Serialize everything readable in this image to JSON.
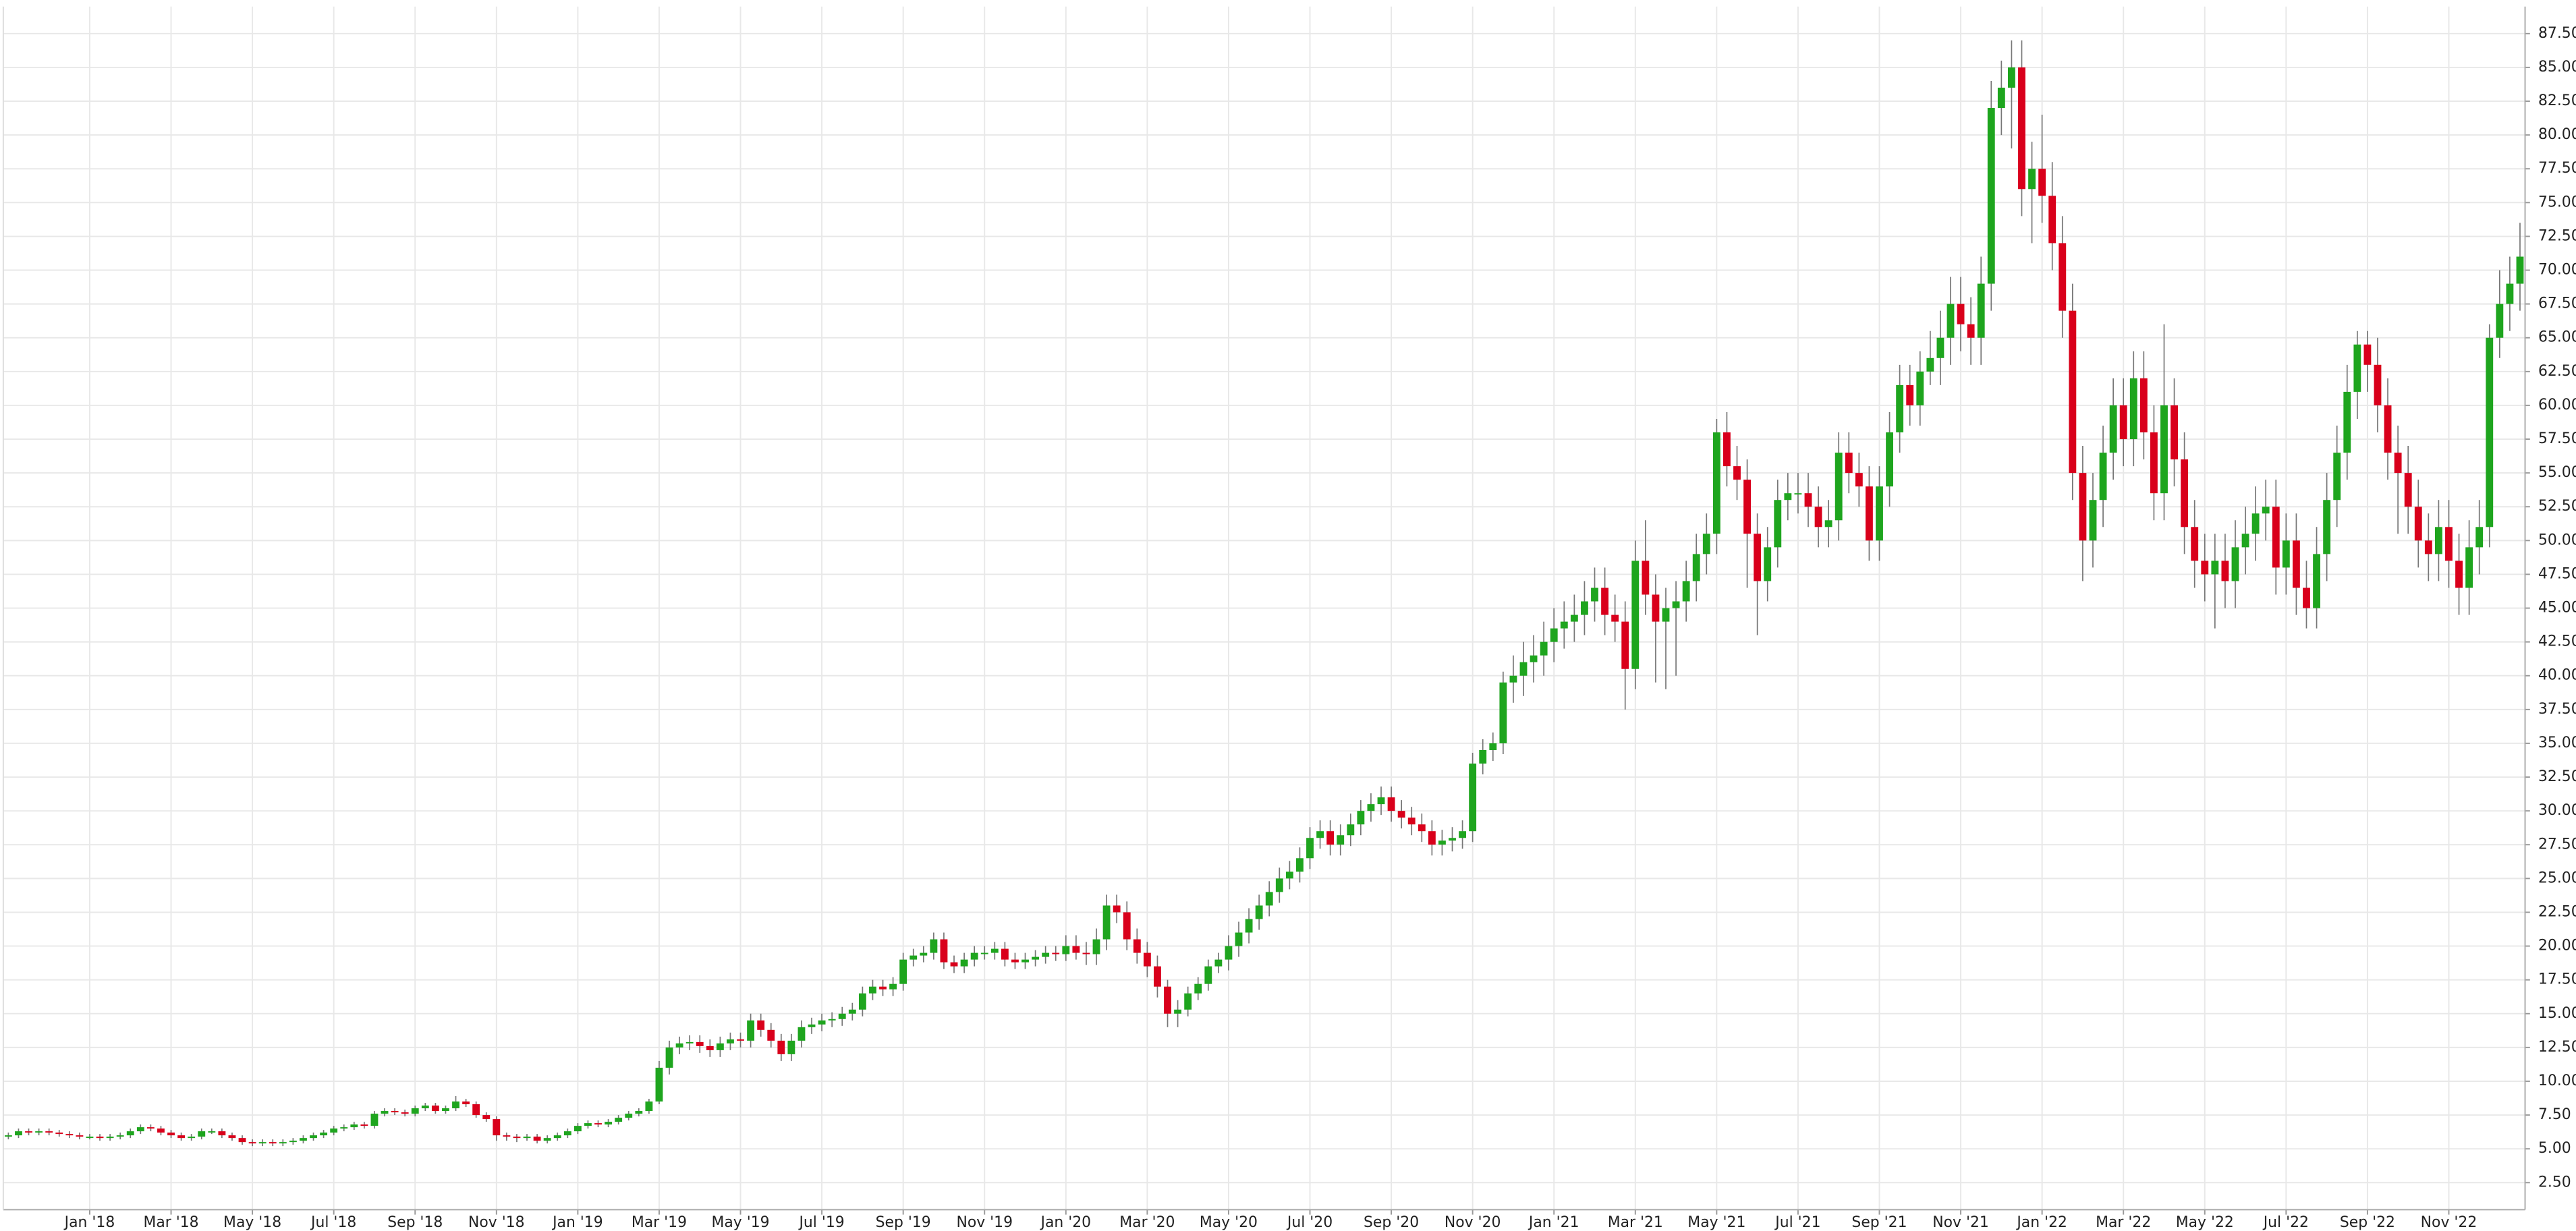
{
  "chart_data": {
    "type": "candlestick",
    "up_color": "#1ea51e",
    "down_color": "#d9001b",
    "wick_color": "#777777",
    "grid": true,
    "y_axis_side": "right",
    "open": [
      5.9,
      6.0,
      6.3,
      6.2,
      6.3,
      6.2,
      6.1,
      6.0,
      5.9,
      5.9,
      5.8,
      5.9,
      6.0,
      6.3,
      6.6,
      6.5,
      6.2,
      6.0,
      5.8,
      5.9,
      6.3,
      6.3,
      6.0,
      5.8,
      5.5,
      5.4,
      5.5,
      5.4,
      5.5,
      5.6,
      5.8,
      6.0,
      6.2,
      6.5,
      6.6,
      6.8,
      6.7,
      7.6,
      7.8,
      7.7,
      7.6,
      8.0,
      8.2,
      7.8,
      8.0,
      8.5,
      8.3,
      7.5,
      7.2,
      6.0,
      5.9,
      5.8,
      5.9,
      5.6,
      5.8,
      6.0,
      6.3,
      6.7,
      6.9,
      6.8,
      7.0,
      7.3,
      7.6,
      7.8,
      8.5,
      11.0,
      12.5,
      12.8,
      12.9,
      12.6,
      12.3,
      12.8,
      13.1,
      13.0,
      14.5,
      13.8,
      13.0,
      12.0,
      13.0,
      14.0,
      14.2,
      14.5,
      14.6,
      15.0,
      15.3,
      16.5,
      17.0,
      16.8,
      17.2,
      19.0,
      19.3,
      19.5,
      20.5,
      18.8,
      18.5,
      19.0,
      19.5,
      19.5,
      19.8,
      19.0,
      18.8,
      19.0,
      19.2,
      19.5,
      19.4,
      20.0,
      19.5,
      19.4,
      20.5,
      23.0,
      22.5,
      20.5,
      19.5,
      18.5,
      17.0,
      15.0,
      15.3,
      16.5,
      17.2,
      18.5,
      19.0,
      20.0,
      21.0,
      22.0,
      23.0,
      24.0,
      25.0,
      25.5,
      26.5,
      28.0,
      28.5,
      27.5,
      28.2,
      29.0,
      30.0,
      30.5,
      31.0,
      30.0,
      29.5,
      29.0,
      28.5,
      27.5,
      27.8,
      28.0,
      28.5,
      33.5,
      34.5,
      35.0,
      39.5,
      40.0,
      41.0,
      41.5,
      42.5,
      43.5,
      44.0,
      44.5,
      45.5,
      46.5,
      44.5,
      44.0,
      40.5,
      48.5,
      46.0,
      44.0,
      45.0,
      45.5,
      47.0,
      49.0,
      50.5,
      58.0,
      55.5,
      54.5,
      50.5,
      47.0,
      49.5,
      53.0,
      53.5,
      53.5,
      52.5,
      51.0,
      51.5,
      56.5,
      55.0,
      54.0,
      50.0,
      54.0,
      58.0,
      61.5,
      60.0,
      62.5,
      63.5,
      65.0,
      67.5,
      66.0,
      65.0,
      69.0,
      82.0,
      83.5,
      85.0,
      76.0,
      77.5,
      75.5,
      72.0,
      67.0,
      55.0,
      50.0,
      53.0,
      56.5,
      60.0,
      57.5,
      62.0,
      58.0,
      53.5,
      60.0,
      56.0,
      51.0,
      48.5,
      47.5,
      48.5,
      47.0,
      49.5,
      50.5,
      52.0,
      52.5,
      48.0,
      50.0,
      46.5,
      45.0,
      49.0,
      53.0,
      56.5,
      61.0,
      64.5,
      63.0,
      60.0,
      56.5,
      55.0,
      52.5,
      50.0,
      49.0,
      51.0,
      48.5,
      46.5,
      49.5,
      51.0,
      65.0,
      67.5,
      69.0
    ],
    "high": [
      6.2,
      6.5,
      6.5,
      6.5,
      6.5,
      6.4,
      6.3,
      6.2,
      6.1,
      6.1,
      6.1,
      6.2,
      6.5,
      6.8,
      6.8,
      6.7,
      6.4,
      6.2,
      6.1,
      6.5,
      6.5,
      6.5,
      6.2,
      6.0,
      5.7,
      5.7,
      5.7,
      5.7,
      5.8,
      6.0,
      6.2,
      6.4,
      6.7,
      6.8,
      7.0,
      7.0,
      7.8,
      8.0,
      8.0,
      7.9,
      8.2,
      8.4,
      8.4,
      8.2,
      8.9,
      8.7,
      8.5,
      7.7,
      7.4,
      6.2,
      6.1,
      6.1,
      6.1,
      6.0,
      6.2,
      6.5,
      6.9,
      7.1,
      7.1,
      7.2,
      7.5,
      7.8,
      8.0,
      8.7,
      11.5,
      13.0,
      13.3,
      13.4,
      13.4,
      13.1,
      13.3,
      13.6,
      13.6,
      15.0,
      15.0,
      14.3,
      13.5,
      13.5,
      14.5,
      14.7,
      15.0,
      15.1,
      15.5,
      15.8,
      17.0,
      17.5,
      17.5,
      17.7,
      19.5,
      19.8,
      20.0,
      21.0,
      21.0,
      19.3,
      19.5,
      20.0,
      20.0,
      20.3,
      20.3,
      19.5,
      19.5,
      19.7,
      20.0,
      20.0,
      20.8,
      20.8,
      20.3,
      21.3,
      23.8,
      23.8,
      23.3,
      21.3,
      20.3,
      19.3,
      17.5,
      16.0,
      17.0,
      17.7,
      19.0,
      19.5,
      20.8,
      21.8,
      22.8,
      23.8,
      24.8,
      25.8,
      26.3,
      27.3,
      28.8,
      29.3,
      29.3,
      29.0,
      29.8,
      30.8,
      31.3,
      31.8,
      31.8,
      30.8,
      30.3,
      29.8,
      29.3,
      28.6,
      28.8,
      29.3,
      34.3,
      35.3,
      35.8,
      40.3,
      41.5,
      42.5,
      43.0,
      44.0,
      45.0,
      45.5,
      46.0,
      47.0,
      48.0,
      48.0,
      46.0,
      45.5,
      50.0,
      51.5,
      47.5,
      46.5,
      47.0,
      48.5,
      50.5,
      52.0,
      59.0,
      59.5,
      57.0,
      56.0,
      52.0,
      51.0,
      54.5,
      55.0,
      55.0,
      55.0,
      54.0,
      53.0,
      58.0,
      58.0,
      56.5,
      55.5,
      55.5,
      59.5,
      63.0,
      63.0,
      64.0,
      65.5,
      67.0,
      69.5,
      69.5,
      68.0,
      71.0,
      84.0,
      85.5,
      87.0,
      87.0,
      79.5,
      81.5,
      78.0,
      74.0,
      69.0,
      57.0,
      55.0,
      58.5,
      62.0,
      62.0,
      64.0,
      64.0,
      60.0,
      66.0,
      62.0,
      58.0,
      53.0,
      50.5,
      50.5,
      50.5,
      51.5,
      52.5,
      54.0,
      54.5,
      54.5,
      52.0,
      52.0,
      48.5,
      51.0,
      55.0,
      58.5,
      63.0,
      65.5,
      65.5,
      65.0,
      62.0,
      58.5,
      57.0,
      54.5,
      52.0,
      53.0,
      53.0,
      50.5,
      51.5,
      53.0,
      66.0,
      70.0,
      71.0,
      73.5
    ],
    "low": [
      5.7,
      5.8,
      6.0,
      6.0,
      6.0,
      5.9,
      5.8,
      5.7,
      5.7,
      5.6,
      5.6,
      5.7,
      5.8,
      6.1,
      6.3,
      6.0,
      5.8,
      5.6,
      5.6,
      5.7,
      6.1,
      5.8,
      5.6,
      5.3,
      5.2,
      5.2,
      5.2,
      5.2,
      5.3,
      5.4,
      5.6,
      5.8,
      6.0,
      6.3,
      6.4,
      6.5,
      6.5,
      7.4,
      7.5,
      7.4,
      7.4,
      7.8,
      7.6,
      7.6,
      7.8,
      8.1,
      7.3,
      7.0,
      5.6,
      5.6,
      5.5,
      5.6,
      5.4,
      5.4,
      5.6,
      5.8,
      6.1,
      6.5,
      6.6,
      6.6,
      6.8,
      7.1,
      7.4,
      7.6,
      8.3,
      10.5,
      12.0,
      12.3,
      12.1,
      11.8,
      11.8,
      12.3,
      12.5,
      12.5,
      13.3,
      12.5,
      11.5,
      11.5,
      12.5,
      13.5,
      13.7,
      14.0,
      14.1,
      14.5,
      14.8,
      16.0,
      16.3,
      16.3,
      16.7,
      18.5,
      18.8,
      19.0,
      18.3,
      18.0,
      18.0,
      18.5,
      19.0,
      19.0,
      18.5,
      18.3,
      18.3,
      18.5,
      18.7,
      18.9,
      18.9,
      19.0,
      18.6,
      18.6,
      19.7,
      21.7,
      19.7,
      18.7,
      17.7,
      16.2,
      14.0,
      14.0,
      14.8,
      16.0,
      16.7,
      18.0,
      18.2,
      19.2,
      20.2,
      21.2,
      22.2,
      23.2,
      24.2,
      24.7,
      25.7,
      27.2,
      26.7,
      26.7,
      27.4,
      28.2,
      29.2,
      29.7,
      29.2,
      28.7,
      28.2,
      27.7,
      26.7,
      26.7,
      27.0,
      27.2,
      27.7,
      32.7,
      33.7,
      34.2,
      38.0,
      38.5,
      39.5,
      40.0,
      41.0,
      42.0,
      42.5,
      43.0,
      44.0,
      43.0,
      42.5,
      37.5,
      39.0,
      44.5,
      39.5,
      39.0,
      40.0,
      44.0,
      45.5,
      47.5,
      49.0,
      54.0,
      53.0,
      46.5,
      43.0,
      45.5,
      48.0,
      51.5,
      52.0,
      51.0,
      49.5,
      49.5,
      50.0,
      53.5,
      52.5,
      48.5,
      48.5,
      52.5,
      56.5,
      58.5,
      58.5,
      61.5,
      61.5,
      63.0,
      64.0,
      63.0,
      63.0,
      67.0,
      80.0,
      79.0,
      74.0,
      72.0,
      73.5,
      70.0,
      65.0,
      53.0,
      47.0,
      48.0,
      51.0,
      54.5,
      55.5,
      55.5,
      56.0,
      51.5,
      51.5,
      54.0,
      49.0,
      46.5,
      45.5,
      43.5,
      45.0,
      45.0,
      47.5,
      48.5,
      50.0,
      46.0,
      46.0,
      44.5,
      43.5,
      43.5,
      47.0,
      51.0,
      54.5,
      59.0,
      61.0,
      58.0,
      54.5,
      50.5,
      50.5,
      48.0,
      47.0,
      47.0,
      46.5,
      44.5,
      44.5,
      47.5,
      49.5,
      63.5,
      65.5,
      67.0
    ],
    "close": [
      6.0,
      6.3,
      6.2,
      6.3,
      6.2,
      6.1,
      6.0,
      5.9,
      5.9,
      5.8,
      5.9,
      6.0,
      6.3,
      6.6,
      6.5,
      6.2,
      6.0,
      5.8,
      5.9,
      6.3,
      6.3,
      6.0,
      5.8,
      5.5,
      5.4,
      5.5,
      5.4,
      5.5,
      5.6,
      5.8,
      6.0,
      6.2,
      6.5,
      6.6,
      6.8,
      6.7,
      7.6,
      7.8,
      7.7,
      7.6,
      8.0,
      8.2,
      7.8,
      8.0,
      8.5,
      8.3,
      7.5,
      7.2,
      6.0,
      5.9,
      5.8,
      5.9,
      5.6,
      5.8,
      6.0,
      6.3,
      6.7,
      6.9,
      6.8,
      7.0,
      7.3,
      7.6,
      7.8,
      8.5,
      11.0,
      12.5,
      12.8,
      12.9,
      12.6,
      12.3,
      12.8,
      13.1,
      13.0,
      14.5,
      13.8,
      13.0,
      12.0,
      13.0,
      14.0,
      14.2,
      14.5,
      14.6,
      15.0,
      15.3,
      16.5,
      17.0,
      16.8,
      17.2,
      19.0,
      19.3,
      19.5,
      20.5,
      18.8,
      18.5,
      19.0,
      19.5,
      19.5,
      19.8,
      19.0,
      18.8,
      19.0,
      19.2,
      19.5,
      19.4,
      20.0,
      19.5,
      19.4,
      20.5,
      23.0,
      22.5,
      20.5,
      19.5,
      18.5,
      17.0,
      15.0,
      15.3,
      16.5,
      17.2,
      18.5,
      19.0,
      20.0,
      21.0,
      22.0,
      23.0,
      24.0,
      25.0,
      25.5,
      26.5,
      28.0,
      28.5,
      27.5,
      28.2,
      29.0,
      30.0,
      30.5,
      31.0,
      30.0,
      29.5,
      29.0,
      28.5,
      27.5,
      27.8,
      28.0,
      28.5,
      33.5,
      34.5,
      35.0,
      39.5,
      40.0,
      41.0,
      41.5,
      42.5,
      43.5,
      44.0,
      44.5,
      45.5,
      46.5,
      44.5,
      44.0,
      40.5,
      48.5,
      46.0,
      44.0,
      45.0,
      45.5,
      47.0,
      49.0,
      50.5,
      58.0,
      55.5,
      54.5,
      50.5,
      47.0,
      49.5,
      53.0,
      53.5,
      53.5,
      52.5,
      51.0,
      51.5,
      56.5,
      55.0,
      54.0,
      50.0,
      54.0,
      58.0,
      61.5,
      60.0,
      62.5,
      63.5,
      65.0,
      67.5,
      66.0,
      65.0,
      69.0,
      82.0,
      83.5,
      85.0,
      76.0,
      77.5,
      75.5,
      72.0,
      67.0,
      55.0,
      50.0,
      53.0,
      56.5,
      60.0,
      57.5,
      62.0,
      58.0,
      53.5,
      60.0,
      56.0,
      51.0,
      48.5,
      47.5,
      48.5,
      47.0,
      49.5,
      50.5,
      52.0,
      52.5,
      48.0,
      50.0,
      46.5,
      45.0,
      49.0,
      53.0,
      56.5,
      61.0,
      64.5,
      63.0,
      60.0,
      56.5,
      55.0,
      52.5,
      50.0,
      49.0,
      51.0,
      48.5,
      46.5,
      49.5,
      51.0,
      65.0,
      67.5,
      69.0,
      71.0
    ],
    "ylim": [
      0.5,
      89.5
    ],
    "yticks": [
      {
        "value": 2.5,
        "label": "2.50"
      },
      {
        "value": 5,
        "label": "5.00"
      },
      {
        "value": 7.5,
        "label": "7.50"
      },
      {
        "value": 10,
        "label": "10.00"
      },
      {
        "value": 12.5,
        "label": "12.50"
      },
      {
        "value": 15,
        "label": "15.00"
      },
      {
        "value": 17.5,
        "label": "17.50"
      },
      {
        "value": 20,
        "label": "20.00"
      },
      {
        "value": 22.5,
        "label": "22.50"
      },
      {
        "value": 25,
        "label": "25.00"
      },
      {
        "value": 27.5,
        "label": "27.50"
      },
      {
        "value": 30,
        "label": "30.00"
      },
      {
        "value": 32.5,
        "label": "32.50"
      },
      {
        "value": 35,
        "label": "35.00"
      },
      {
        "value": 37.5,
        "label": "37.50"
      },
      {
        "value": 40,
        "label": "40.00"
      },
      {
        "value": 42.5,
        "label": "42.50"
      },
      {
        "value": 45,
        "label": "45.00"
      },
      {
        "value": 47.5,
        "label": "47.50"
      },
      {
        "value": 50,
        "label": "50.00"
      },
      {
        "value": 52.5,
        "label": "52.50"
      },
      {
        "value": 55,
        "label": "55.00"
      },
      {
        "value": 57.5,
        "label": "57.50"
      },
      {
        "value": 60,
        "label": "60.00"
      },
      {
        "value": 62.5,
        "label": "62.50"
      },
      {
        "value": 65,
        "label": "65.00"
      },
      {
        "value": 67.5,
        "label": "67.50"
      },
      {
        "value": 70,
        "label": "70.00"
      },
      {
        "value": 72.5,
        "label": "72.50"
      },
      {
        "value": 75,
        "label": "75.00"
      },
      {
        "value": 77.5,
        "label": "77.50"
      },
      {
        "value": 80,
        "label": "80.00"
      },
      {
        "value": 82.5,
        "label": "82.50"
      },
      {
        "value": 85,
        "label": "85.00"
      },
      {
        "value": 87.5,
        "label": "87.50"
      }
    ],
    "xticks": [
      {
        "value": 8,
        "label": "Jan '18"
      },
      {
        "value": 16,
        "label": "Mar '18"
      },
      {
        "value": 24,
        "label": "May '18"
      },
      {
        "value": 32,
        "label": "Jul '18"
      },
      {
        "value": 40,
        "label": "Sep '18"
      },
      {
        "value": 48,
        "label": "Nov '18"
      },
      {
        "value": 56,
        "label": "Jan '19"
      },
      {
        "value": 64,
        "label": "Mar '19"
      },
      {
        "value": 72,
        "label": "May '19"
      },
      {
        "value": 80,
        "label": "Jul '19"
      },
      {
        "value": 88,
        "label": "Sep '19"
      },
      {
        "value": 96,
        "label": "Nov '19"
      },
      {
        "value": 104,
        "label": "Jan '20"
      },
      {
        "value": 112,
        "label": "Mar '20"
      },
      {
        "value": 120,
        "label": "May '20"
      },
      {
        "value": 128,
        "label": "Jul '20"
      },
      {
        "value": 136,
        "label": "Sep '20"
      },
      {
        "value": 144,
        "label": "Nov '20"
      },
      {
        "value": 152,
        "label": "Jan '21"
      },
      {
        "value": 160,
        "label": "Mar '21"
      },
      {
        "value": 168,
        "label": "May '21"
      },
      {
        "value": 176,
        "label": "Jul '21"
      },
      {
        "value": 184,
        "label": "Sep '21"
      },
      {
        "value": 192,
        "label": "Nov '21"
      },
      {
        "value": 200,
        "label": "Jan '22"
      },
      {
        "value": 208,
        "label": "Mar '22"
      },
      {
        "value": 216,
        "label": "May '22"
      },
      {
        "value": 224,
        "label": "Jul '22"
      },
      {
        "value": 232,
        "label": "Sep '22"
      },
      {
        "value": 240,
        "label": "Nov '22"
      }
    ]
  }
}
